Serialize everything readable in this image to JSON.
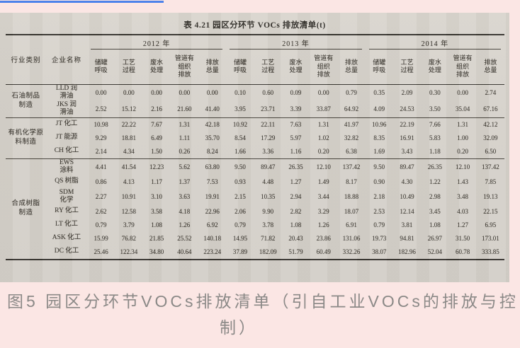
{
  "table": {
    "title": "表 4.21  园区分环节 VOCs 排放清单(t)",
    "header": {
      "industry": "行业类别",
      "enterprise": "企业名称"
    },
    "years": [
      "2012 年",
      "2013 年",
      "2014 年"
    ],
    "sub_columns": [
      "储罐\n呼吸",
      "工艺\n过程",
      "废水\n处理",
      "管道有\n组织\n排放",
      "排放\n总量"
    ],
    "groups": [
      {
        "industry": "石油制品\n制造",
        "rows": [
          {
            "enterprise": "LLD 润\n滑油",
            "values": [
              "0.00",
              "0.00",
              "0.00",
              "0.00",
              "0.00",
              "0.10",
              "0.60",
              "0.09",
              "0.00",
              "0.79",
              "0.35",
              "2.09",
              "0.30",
              "0.00",
              "2.74"
            ]
          },
          {
            "enterprise": "JKS 润\n滑油",
            "values": [
              "2.52",
              "15.12",
              "2.16",
              "21.60",
              "41.40",
              "3.95",
              "23.71",
              "3.39",
              "33.87",
              "64.92",
              "4.09",
              "24.53",
              "3.50",
              "35.04",
              "67.16"
            ]
          }
        ]
      },
      {
        "industry": "有机化学原\n料制造",
        "rows": [
          {
            "enterprise": "JT 化工",
            "values": [
              "10.98",
              "22.22",
              "7.67",
              "1.31",
              "42.18",
              "10.92",
              "22.11",
              "7.63",
              "1.31",
              "41.97",
              "10.96",
              "22.19",
              "7.66",
              "1.31",
              "42.12"
            ]
          },
          {
            "enterprise": "JT 能源",
            "values": [
              "9.29",
              "18.81",
              "6.49",
              "1.11",
              "35.70",
              "8.54",
              "17.29",
              "5.97",
              "1.02",
              "32.82",
              "8.35",
              "16.91",
              "5.83",
              "1.00",
              "32.09"
            ]
          },
          {
            "enterprise": "CH 化工",
            "values": [
              "2.14",
              "4.34",
              "1.50",
              "0.26",
              "8.24",
              "1.66",
              "3.36",
              "1.16",
              "0.20",
              "6.38",
              "1.69",
              "3.43",
              "1.18",
              "0.20",
              "6.50"
            ]
          }
        ]
      },
      {
        "industry": "合成树脂\n制造",
        "rows": [
          {
            "enterprise": "EWS\n涂料",
            "values": [
              "4.41",
              "41.54",
              "12.23",
              "5.62",
              "63.80",
              "9.50",
              "89.47",
              "26.35",
              "12.10",
              "137.42",
              "9.50",
              "89.47",
              "26.35",
              "12.10",
              "137.42"
            ]
          },
          {
            "enterprise": "QS 树脂",
            "values": [
              "0.86",
              "4.13",
              "1.17",
              "1.37",
              "7.53",
              "0.93",
              "4.48",
              "1.27",
              "1.49",
              "8.17",
              "0.90",
              "4.30",
              "1.22",
              "1.43",
              "7.85"
            ]
          },
          {
            "enterprise": "SDM\n化学",
            "values": [
              "2.27",
              "10.91",
              "3.10",
              "3.63",
              "19.91",
              "2.15",
              "10.35",
              "2.94",
              "3.44",
              "18.88",
              "2.18",
              "10.49",
              "2.98",
              "3.48",
              "19.13"
            ]
          },
          {
            "enterprise": "RY 化工",
            "values": [
              "2.62",
              "12.58",
              "3.58",
              "4.18",
              "22.96",
              "2.06",
              "9.90",
              "2.82",
              "3.29",
              "18.07",
              "2.53",
              "12.14",
              "3.45",
              "4.03",
              "22.15"
            ]
          },
          {
            "enterprise": "LT 化工",
            "values": [
              "0.79",
              "3.79",
              "1.08",
              "1.26",
              "6.92",
              "0.79",
              "3.78",
              "1.08",
              "1.26",
              "6.91",
              "0.79",
              "3.81",
              "1.08",
              "1.27",
              "6.95"
            ]
          },
          {
            "enterprise": "ASK 化工",
            "values": [
              "15.99",
              "76.82",
              "21.85",
              "25.52",
              "140.18",
              "14.95",
              "71.82",
              "20.43",
              "23.86",
              "131.06",
              "19.73",
              "94.81",
              "26.97",
              "31.50",
              "173.01"
            ]
          },
          {
            "enterprise": "DC 化工",
            "values": [
              "25.46",
              "122.34",
              "34.80",
              "40.64",
              "223.24",
              "37.89",
              "182.09",
              "51.79",
              "60.49",
              "332.26",
              "38.07",
              "182.96",
              "52.04",
              "60.78",
              "333.85"
            ]
          }
        ]
      }
    ]
  },
  "caption": {
    "line1": "图5  园区分环节VOCs排放清单（引自工业VOCs的排放与控",
    "line2": "制）"
  },
  "colors": {
    "page_background": "#fbe6e4",
    "scan_background": "#d5d1ca",
    "accent_blue_line": "#4d82ea",
    "caption_text": "#8b8987",
    "table_text": "#3a362f"
  }
}
